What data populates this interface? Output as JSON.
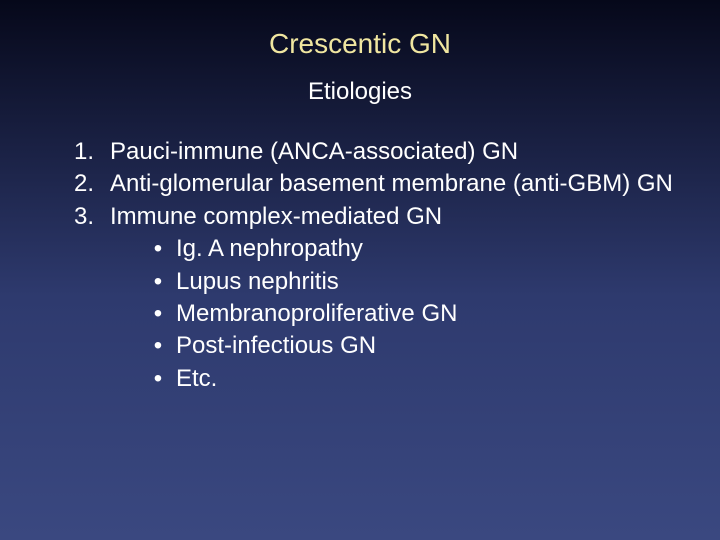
{
  "slide": {
    "title": "Crescentic GN",
    "subtitle": "Etiologies",
    "title_color": "#f0e6a0",
    "text_color": "#ffffff",
    "background_gradient": [
      "#06081a",
      "#2e3a6e",
      "#3a4880"
    ],
    "title_fontsize": 28,
    "subtitle_fontsize": 24,
    "body_fontsize": 24,
    "items": [
      {
        "number": "1.",
        "text": "Pauci-immune (ANCA-associated) GN"
      },
      {
        "number": "2.",
        "text": "Anti-glomerular basement membrane (anti-GBM) GN"
      },
      {
        "number": "3.",
        "text": "Immune complex-mediated GN"
      }
    ],
    "bullet_char": "•",
    "subitems": [
      "Ig. A nephropathy",
      "Lupus nephritis",
      "Membranoproliferative GN",
      "Post-infectious GN",
      "Etc."
    ]
  }
}
